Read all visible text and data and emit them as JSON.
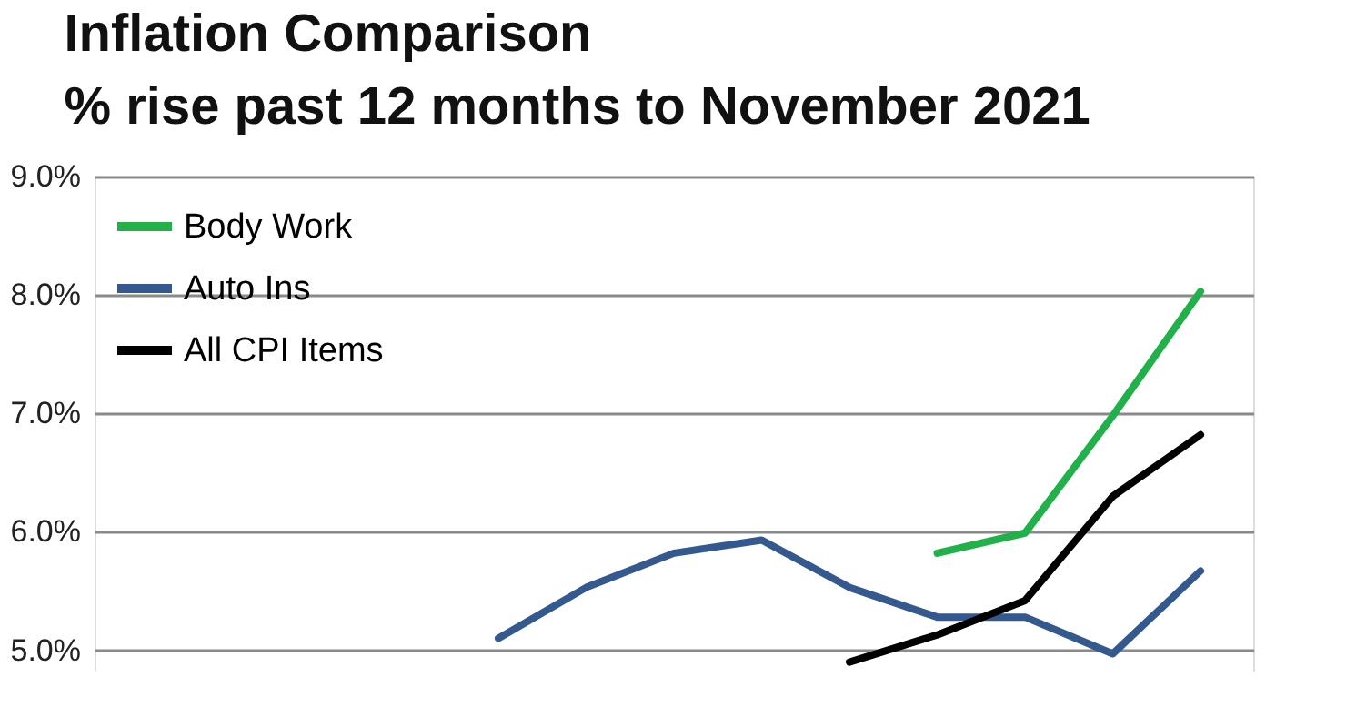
{
  "chart_data": {
    "type": "line",
    "title": [
      "Inflation Comparison",
      "% rise past 12 months to November 2021"
    ],
    "categories": [
      null,
      null,
      null,
      null,
      null,
      null,
      null,
      null,
      null,
      null,
      null,
      null,
      null
    ],
    "series": [
      {
        "name": "Body Work",
        "color": "#22b04b",
        "values": [
          null,
          null,
          null,
          null,
          null,
          null,
          null,
          null,
          null,
          5.82,
          5.99,
          6.98,
          8.03
        ]
      },
      {
        "name": "Auto Ins",
        "color": "#34598f",
        "values": [
          null,
          null,
          null,
          null,
          5.1,
          5.53,
          5.82,
          5.93,
          5.53,
          5.28,
          5.28,
          4.97,
          5.67
        ]
      },
      {
        "name": "All CPI Items",
        "color": "#000000",
        "values": [
          null,
          null,
          null,
          null,
          null,
          null,
          null,
          null,
          4.9,
          5.13,
          5.42,
          6.3,
          6.82
        ]
      }
    ],
    "ylim": [
      4.82,
      9.0
    ],
    "yticks": [
      {
        "value": 5,
        "label": "5.0%"
      },
      {
        "value": 6,
        "label": "6.0%"
      },
      {
        "value": 7,
        "label": "7.0%"
      },
      {
        "value": 8,
        "label": "8.0%"
      },
      {
        "value": 9,
        "label": "9.0%"
      }
    ],
    "grid": "y",
    "legend": "top left",
    "tick_labels": "y",
    "line_style": "solid",
    "marker": "none"
  }
}
